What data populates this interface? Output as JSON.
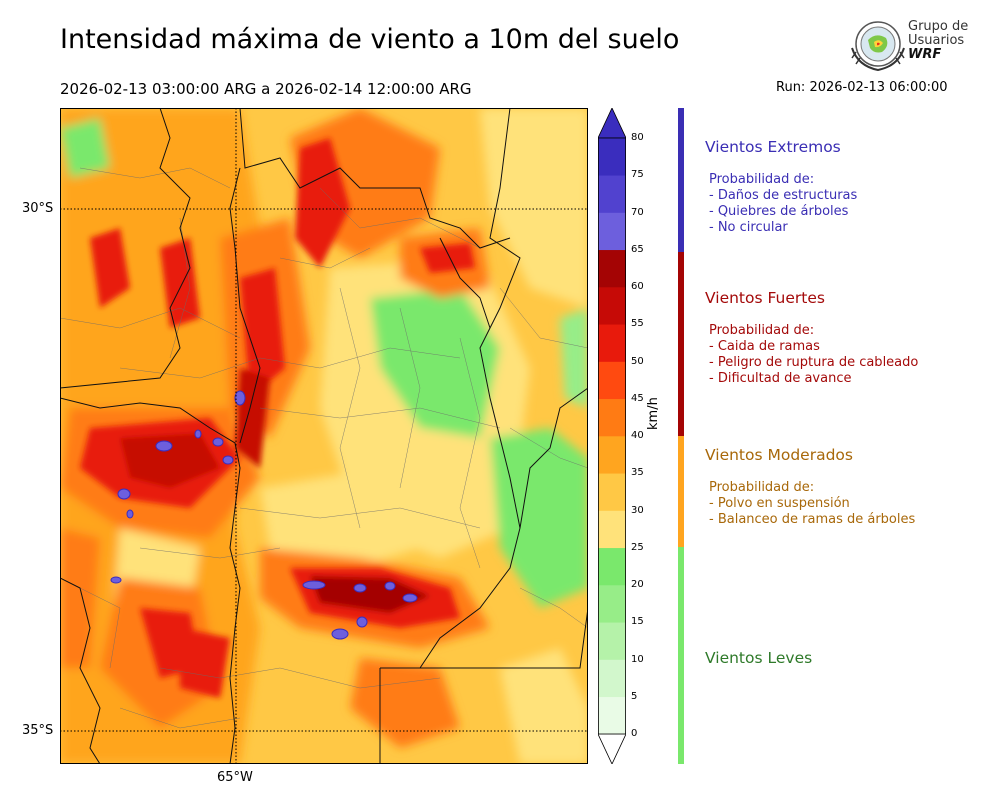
{
  "header": {
    "title": "Intensidad máxima de viento a 10m del suelo",
    "period": "2026-02-13 03:00:00 ARG  a  2026-02-14 12:00:00 ARG",
    "run": "Run: 2026-02-13 06:00:00"
  },
  "logo": {
    "line1": "Grupo de",
    "line2": "Usuarios",
    "line3": "WRF"
  },
  "map": {
    "lat_labels": [
      "30°S",
      "35°S"
    ],
    "lon_labels": [
      "65°W"
    ]
  },
  "colorbar": {
    "unit": "km/h",
    "ticks": [
      "0",
      "5",
      "10",
      "15",
      "20",
      "25",
      "30",
      "35",
      "40",
      "45",
      "50",
      "55",
      "60",
      "65",
      "70",
      "75",
      "80"
    ],
    "colors": [
      "#e9fbe6",
      "#d2f7cc",
      "#b5f2a9",
      "#97ed88",
      "#7ae86c",
      "#ffe27a",
      "#ffc845",
      "#ffa51f",
      "#ff7b14",
      "#ff4a10",
      "#e81a0c",
      "#c60a06",
      "#a40404",
      "#6d5fdd",
      "#5142cf",
      "#3a2dbe"
    ]
  },
  "categories": [
    {
      "title": "Vientos Extremos",
      "color": "#3a2eb4",
      "lines": [
        "Probabilidad de:",
        "- Daños de estructuras",
        "- Quiebres de árboles",
        "- No circular"
      ]
    },
    {
      "title": "Vientos Fuertes",
      "color": "#a40a0a",
      "lines": [
        "Probabilidad de:",
        "- Caida de ramas",
        "- Peligro de ruptura de cableado",
        "- Dificultad de avance"
      ]
    },
    {
      "title": "Vientos Moderados",
      "color": "#a8680a",
      "lines": [
        "Probabilidad de:",
        "- Polvo en suspensión",
        "- Balanceo de ramas de árboles"
      ]
    },
    {
      "title": "Vientos Leves",
      "color": "#2f7a2a",
      "lines": []
    }
  ]
}
